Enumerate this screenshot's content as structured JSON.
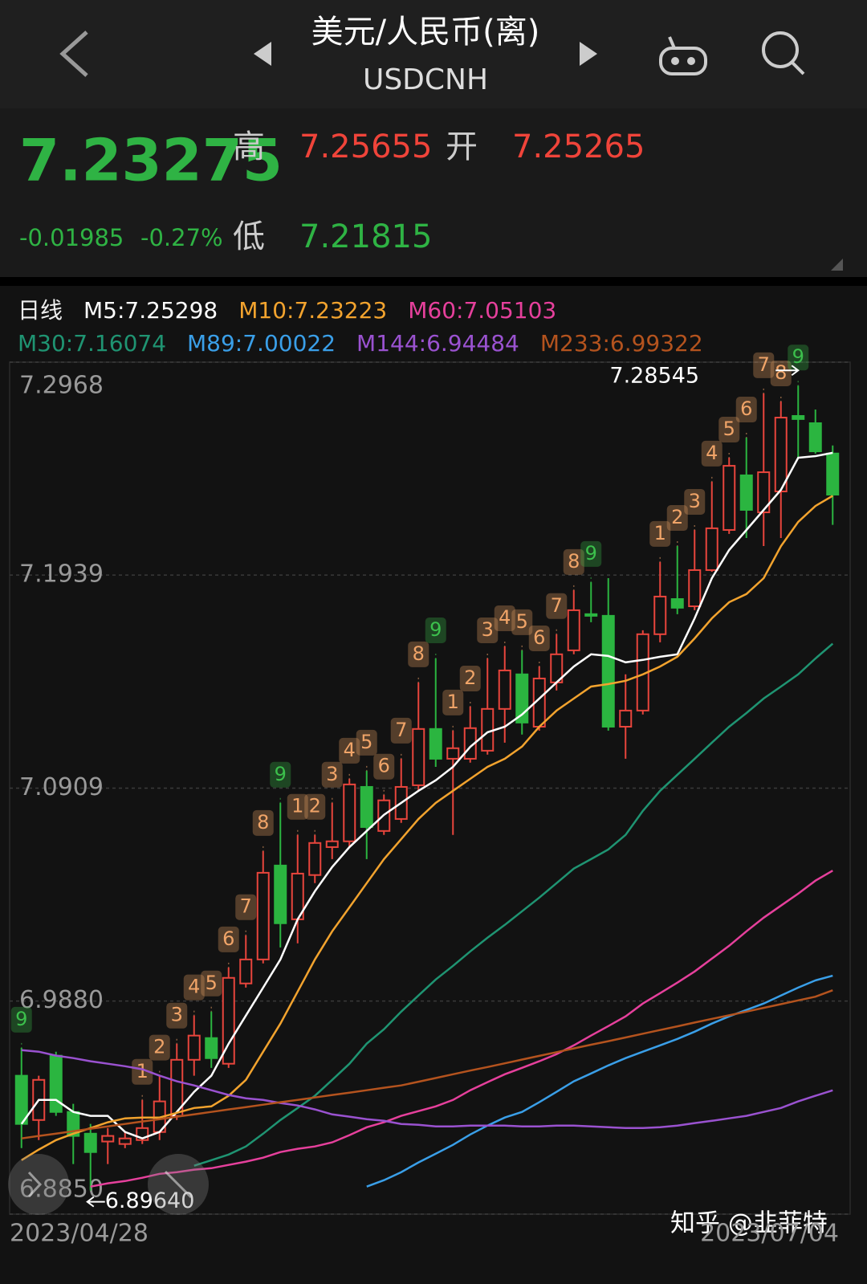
{
  "header": {
    "title": "美元/人民币(离)",
    "subtitle": "USDCNH"
  },
  "quote": {
    "last": "7.23275",
    "change": "-0.01985",
    "change_pct": "-0.27%",
    "high_label": "高",
    "high": "7.25655",
    "open_label": "开",
    "open": "7.25265",
    "low_label": "低",
    "low": "7.21815"
  },
  "watermark": "知乎 @韭菲特",
  "chart_data": {
    "type": "candlestick",
    "period": "日线",
    "up_color": "#e8453c",
    "down_color": "#2bb540",
    "grid": true,
    "ylim": [
      6.885,
      7.2968
    ],
    "yticks": [
      {
        "value": 6.885,
        "label": "6.8850"
      },
      {
        "value": 6.988,
        "label": "6.9880"
      },
      7.0909,
      7.1939,
      7.2968
    ],
    "max_label": "7.28545",
    "min_label": "6.89640",
    "categories": [
      "2023/04/28",
      null,
      null,
      null,
      null,
      null,
      null,
      null,
      null,
      null,
      null,
      null,
      null,
      null,
      null,
      null,
      null,
      null,
      null,
      null,
      null,
      null,
      null,
      null,
      null,
      null,
      null,
      null,
      null,
      null,
      null,
      null,
      null,
      null,
      null,
      null,
      null,
      null,
      null,
      null,
      null,
      null,
      null,
      null,
      null,
      null,
      null,
      "2023/07/04"
    ],
    "open": [
      6.9519,
      6.9305,
      6.9616,
      6.9344,
      6.9239,
      6.9201,
      6.9189,
      6.9208,
      6.9247,
      6.9325,
      6.9596,
      6.9701,
      6.9577,
      6.9965,
      7.0081,
      7.0535,
      7.0275,
      7.0489,
      7.0624,
      7.0652,
      7.0915,
      7.0702,
      7.076,
      7.0923,
      7.1195,
      7.1051,
      7.1051,
      7.109,
      7.1292,
      7.1459,
      7.1206,
      7.142,
      7.1575,
      7.175,
      7.1742,
      7.1206,
      7.1284,
      7.1653,
      7.1823,
      7.1788,
      7.1963,
      7.2157,
      7.2421,
      7.2242,
      7.2343,
      7.2708,
      7.2673,
      7.25265
    ],
    "high": [
      6.9654,
      6.9519,
      6.9635,
      6.9383,
      6.9286,
      6.9266,
      6.9247,
      6.9402,
      6.9519,
      6.9674,
      6.981,
      6.9829,
      7.0042,
      7.0198,
      7.0605,
      7.0838,
      7.0683,
      7.0683,
      7.0838,
      7.0954,
      7.0993,
      7.0877,
      7.1051,
      7.142,
      7.1536,
      7.1187,
      7.1303,
      7.1536,
      7.1594,
      7.1575,
      7.1497,
      7.1653,
      7.1866,
      7.1905,
      7.1924,
      7.1459,
      7.1672,
      7.2002,
      7.2079,
      7.2157,
      7.239,
      7.2506,
      7.2603,
      7.2817,
      7.2778,
      7.28545,
      7.2739,
      7.25655
    ],
    "low": [
      6.9169,
      6.9208,
      6.9325,
      6.9092,
      6.8964,
      6.9092,
      6.9169,
      6.9189,
      6.9208,
      6.9305,
      6.9519,
      6.9557,
      6.9557,
      6.9945,
      7.0062,
      7.0139,
      7.0159,
      7.045,
      7.0566,
      7.0624,
      7.0566,
      7.0683,
      7.0741,
      7.0896,
      7.1012,
      7.0683,
      7.1032,
      7.1071,
      7.1129,
      7.1168,
      7.1187,
      7.1381,
      7.1556,
      7.1711,
      7.1187,
      7.1051,
      7.1265,
      7.1614,
      7.175,
      7.1769,
      7.1955,
      7.2138,
      7.2118,
      7.2079,
      7.2118,
      7.2506,
      7.2526,
      7.21815
    ],
    "close": [
      6.9286,
      6.9499,
      6.9344,
      6.9228,
      6.915,
      6.9228,
      6.9216,
      6.9266,
      6.9395,
      6.9596,
      6.9713,
      6.9604,
      6.9992,
      7.0081,
      7.05,
      7.0256,
      7.0496,
      7.0644,
      7.0652,
      7.0927,
      7.0721,
      7.085,
      7.0915,
      7.1195,
      7.1051,
      7.1102,
      7.1199,
      7.1292,
      7.1478,
      7.1226,
      7.1439,
      7.1556,
      7.1769,
      7.1742,
      7.1206,
      7.1284,
      7.1653,
      7.1835,
      7.1781,
      7.1963,
      7.2165,
      7.2467,
      7.2254,
      7.2436,
      7.27,
      7.2693,
      7.2537,
      7.23275
    ],
    "setup_labels": [
      "9",
      null,
      null,
      null,
      null,
      null,
      null,
      "1",
      "2",
      "3",
      "4",
      "5",
      "6",
      "7",
      "8",
      "9",
      "1",
      "2",
      "3",
      "4",
      "5",
      "6",
      "7",
      "8",
      "9",
      "1",
      "2",
      "3",
      "4",
      "5",
      "6",
      "7",
      "8",
      "9",
      null,
      null,
      null,
      "1",
      "2",
      "3",
      "4",
      "5",
      "6",
      "7",
      "8",
      "9",
      null,
      null
    ],
    "setup_colors": [
      "#3cc04c",
      null,
      null,
      null,
      null,
      null,
      null,
      "#f0a468",
      "#f0a468",
      "#f0a468",
      "#f0a468",
      "#f0a468",
      "#f0a468",
      "#f0a468",
      "#f0a468",
      "#3cc04c",
      "#f0a468",
      "#f0a468",
      "#f0a468",
      "#f0a468",
      "#f0a468",
      "#f0a468",
      "#f0a468",
      "#f0a468",
      "#3cc04c",
      "#f0a468",
      "#f0a468",
      "#f0a468",
      "#f0a468",
      "#f0a468",
      "#f0a468",
      "#f0a468",
      "#f0a468",
      "#3cc04c",
      null,
      null,
      null,
      "#f0a468",
      "#f0a468",
      "#f0a468",
      "#f0a468",
      "#f0a468",
      "#f0a468",
      "#f0a468",
      "#f0a468",
      "#3cc04c",
      null,
      null
    ],
    "series": [
      {
        "name": "M5:7.25298",
        "color": "#ffffff",
        "values": [
          6.9286,
          6.9402,
          6.9402,
          6.9344,
          6.9325,
          6.9325,
          6.9247,
          6.9216,
          6.9247,
          6.9344,
          6.9441,
          6.9519,
          6.9674,
          6.981,
          6.9945,
          7.0081,
          7.0275,
          7.0411,
          7.0528,
          7.0624,
          7.0702,
          7.078,
          7.0838,
          7.0896,
          7.0947,
          7.1012,
          7.1109,
          7.1179,
          7.1206,
          7.1265,
          7.1342,
          7.142,
          7.1497,
          7.1556,
          7.1548,
          7.1517,
          7.1529,
          7.1544,
          7.1556,
          7.173,
          7.1924,
          7.206,
          7.2157,
          7.2254,
          7.2351,
          7.2506,
          7.2514,
          7.25298
        ]
      },
      {
        "name": "M10:7.23223",
        "color": "#f2a32e",
        "values": [
          6.9111,
          6.9162,
          6.9208,
          6.9239,
          6.9266,
          6.9294,
          6.9313,
          6.9317,
          6.9317,
          6.934,
          6.9363,
          6.9371,
          6.9422,
          6.9499,
          6.9635,
          6.9771,
          6.9926,
          7.0081,
          7.0217,
          7.0333,
          7.045,
          7.0566,
          7.0663,
          7.076,
          7.0838,
          7.0896,
          7.0954,
          7.1012,
          7.1051,
          7.111,
          7.1206,
          7.1284,
          7.1342,
          7.14,
          7.1412,
          7.1428,
          7.1459,
          7.1497,
          7.1544,
          7.1633,
          7.173,
          7.1808,
          7.1847,
          7.1924,
          7.2079,
          7.2196,
          7.2273,
          7.23223
        ]
      },
      {
        "name": "M60:7.05103",
        "color": "#e6409c",
        "values": [
          null,
          null,
          null,
          null,
          6.8983,
          6.8999,
          6.901,
          6.9026,
          6.9045,
          6.9053,
          6.9065,
          6.9072,
          6.9088,
          6.9104,
          6.9123,
          6.915,
          6.9166,
          6.9177,
          6.9197,
          6.9232,
          6.927,
          6.9294,
          6.9325,
          6.9348,
          6.9371,
          6.9402,
          6.9449,
          6.9488,
          6.9526,
          6.9557,
          6.9589,
          6.9623,
          6.9666,
          6.9713,
          6.9759,
          6.9806,
          6.9868,
          6.9918,
          6.9969,
          7.0023,
          7.0085,
          7.0147,
          7.0217,
          7.0283,
          7.0341,
          7.0399,
          7.0462,
          7.05103
        ]
      },
      {
        "name": "M30:7.16074",
        "color": "#1f9472",
        "values": [
          null,
          null,
          null,
          null,
          null,
          null,
          null,
          null,
          null,
          null,
          6.9084,
          6.9111,
          6.9138,
          6.9177,
          6.9239,
          6.9305,
          6.9363,
          6.9422,
          6.9499,
          6.9577,
          6.9674,
          6.9744,
          6.9829,
          6.9907,
          6.9984,
          7.005,
          7.012,
          7.0186,
          7.0248,
          7.0314,
          7.038,
          7.045,
          7.052,
          7.0566,
          7.0613,
          7.0683,
          7.0799,
          7.0896,
          7.0974,
          7.1051,
          7.1129,
          7.1206,
          7.1272,
          7.1342,
          7.14,
          7.1459,
          7.1536,
          7.16074
        ]
      },
      {
        "name": "M89:7.00022",
        "color": "#3a9fe8",
        "values": [
          null,
          null,
          null,
          null,
          null,
          null,
          null,
          null,
          null,
          null,
          null,
          null,
          null,
          null,
          null,
          null,
          null,
          null,
          null,
          null,
          6.8983,
          6.9014,
          6.9053,
          6.91,
          6.9142,
          6.9185,
          6.9235,
          6.9278,
          6.9317,
          6.9344,
          6.9391,
          6.9441,
          6.9492,
          6.953,
          6.9569,
          6.9604,
          6.9635,
          6.9666,
          6.9697,
          6.9732,
          6.9771,
          6.9806,
          6.9837,
          6.9868,
          6.9907,
          6.9945,
          6.998,
          7.00022
        ]
      },
      {
        "name": "M144:6.94484",
        "color": "#9a52d0",
        "values": [
          6.9643,
          6.9635,
          6.9616,
          6.9604,
          6.9589,
          6.9577,
          6.9565,
          6.955,
          6.9519,
          6.9492,
          6.9472,
          6.9449,
          6.9426,
          6.941,
          6.9402,
          6.9387,
          6.9375,
          6.9356,
          6.9332,
          6.9321,
          6.9309,
          6.9301,
          6.9286,
          6.9282,
          6.9274,
          6.9274,
          6.9278,
          6.9278,
          6.9278,
          6.9274,
          6.9274,
          6.9278,
          6.9278,
          6.9274,
          6.927,
          6.9266,
          6.9266,
          6.927,
          6.9278,
          6.929,
          6.9301,
          6.9313,
          6.9325,
          6.9344,
          6.9363,
          6.9395,
          6.9422,
          6.94484
        ]
      },
      {
        "name": "M233:6.99322",
        "color": "#b4531e",
        "values": [
          6.9216,
          6.9228,
          6.9239,
          6.9251,
          6.9263,
          6.9274,
          6.9286,
          6.9298,
          6.9309,
          6.9321,
          6.9332,
          6.9344,
          6.9356,
          6.9367,
          6.9379,
          6.9391,
          6.9402,
          6.9414,
          6.9426,
          6.9437,
          6.9449,
          6.9461,
          6.9472,
          6.949,
          6.9508,
          6.9526,
          6.9544,
          6.9561,
          6.9579,
          6.9597,
          6.9615,
          6.9633,
          6.9651,
          6.9669,
          6.9686,
          6.9704,
          6.9722,
          6.974,
          6.9758,
          6.9776,
          6.9794,
          6.9811,
          6.9829,
          6.9847,
          6.9865,
          6.9883,
          6.9901,
          6.99322
        ]
      }
    ]
  }
}
